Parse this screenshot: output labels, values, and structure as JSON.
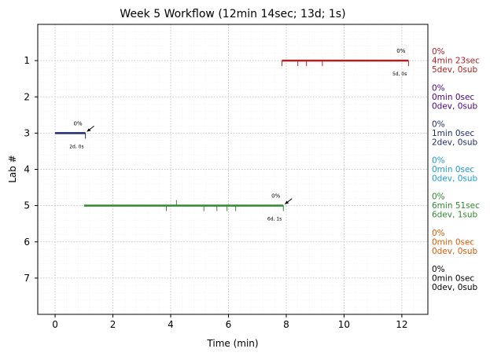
{
  "chart_data": {
    "type": "timeline",
    "title": "Week 5 Workflow (12min 14sec; 13d; 1s)",
    "xlabel": "Time (min)",
    "ylabel": "Lab #",
    "xlim": [
      -0.6,
      12.9
    ],
    "ylim": [
      8,
      0
    ],
    "xticks": [
      0,
      2,
      4,
      6,
      8,
      10,
      12
    ],
    "yticks": [
      1,
      2,
      3,
      4,
      5,
      6,
      7
    ],
    "grid": true,
    "labs": [
      {
        "lab": 1,
        "color": "#b22222",
        "start": 7.85,
        "end": 12.23,
        "dev_ticks": [
          7.85,
          8.4,
          8.7,
          9.25,
          12.23
        ],
        "sub_ticks": [],
        "pct_label": "0%",
        "count_label": "5d, 0s",
        "arrow": false,
        "side": [
          "0%",
          "4min 23sec",
          "5dev, 0sub"
        ]
      },
      {
        "lab": 2,
        "color": "#4b0082",
        "side": [
          "0%",
          "0min 0sec",
          "0dev, 0sub"
        ]
      },
      {
        "lab": 3,
        "color": "#1f2a6e",
        "start": 0.0,
        "end": 1.05,
        "dev_ticks": [
          1.05
        ],
        "sub_ticks": [],
        "pct_label": "0%",
        "count_label": "2d, 0s",
        "arrow": true,
        "side": [
          "0%",
          "1min 0sec",
          "2dev, 0sub"
        ]
      },
      {
        "lab": 4,
        "color": "#1e9ad6",
        "side": [
          "0%",
          "0min 0sec",
          "0dev, 0sub"
        ]
      },
      {
        "lab": 5,
        "color": "#2e8b2e",
        "start": 1.0,
        "end": 7.9,
        "dev_ticks": [
          3.85,
          5.15,
          5.6,
          5.95,
          6.25,
          7.9
        ],
        "sub_ticks": [
          4.2
        ],
        "pct_label": "0%",
        "count_label": "6d, 1s",
        "arrow": true,
        "side": [
          "0%",
          "6min 51sec",
          "6dev, 1sub"
        ]
      },
      {
        "lab": 6,
        "color": "#e05a00",
        "side": [
          "0%",
          "0min 0sec",
          "0dev, 0sub"
        ]
      },
      {
        "lab": 7,
        "color": "#000000",
        "side": [
          "0%",
          "0min 0sec",
          "0dev, 0sub"
        ]
      }
    ]
  }
}
